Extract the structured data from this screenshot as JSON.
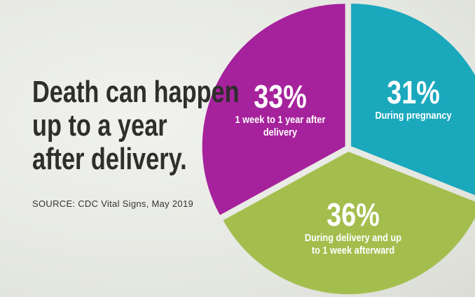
{
  "chart_data": {
    "type": "pie",
    "title": [
      "Death can happen",
      "up to a year",
      "after delivery."
    ],
    "source": "SOURCE: CDC Vital Signs, May 2019",
    "categories": [
      "During pregnancy",
      "During delivery and up to 1 week afterward",
      "1 week to 1 year after delivery"
    ],
    "values": [
      31,
      36,
      33
    ],
    "value_labels": [
      "31%",
      "36%",
      "33%"
    ],
    "colors": [
      "#1aa8bd",
      "#a4be4e",
      "#a6229c"
    ]
  }
}
